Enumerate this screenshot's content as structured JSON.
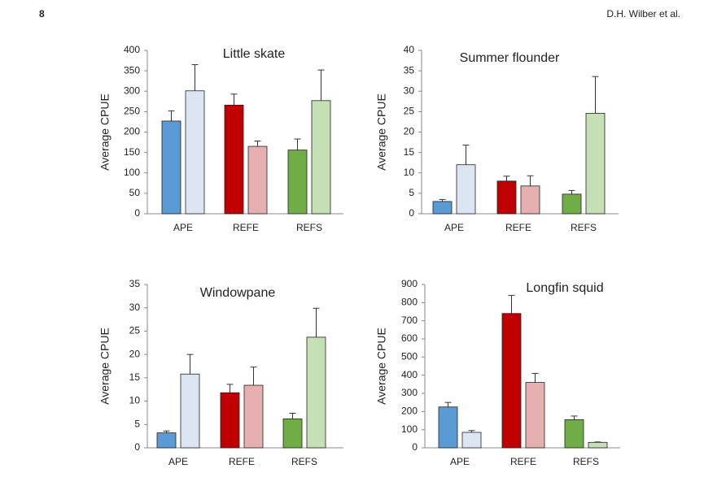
{
  "header": {
    "page": "8",
    "author": "D.H. Wilber et al."
  },
  "chart_data": [
    {
      "type": "bar",
      "title": "Little skate",
      "y_label": "Average CPUE",
      "categories": [
        "APE",
        "REFE",
        "REFS"
      ],
      "ylim": [
        0,
        400
      ],
      "yticks": [
        0,
        50,
        100,
        150,
        200,
        250,
        300,
        350,
        400
      ],
      "series": [
        {
          "colors": [
            "#5b9bd5",
            "#c00000",
            "#70ad47"
          ],
          "values": [
            227,
            266,
            156
          ],
          "errors": [
            25,
            27,
            27
          ]
        },
        {
          "colors": [
            "#dce6f2",
            "#e6b0b0",
            "#c5e0b4"
          ],
          "values": [
            301,
            165,
            277
          ],
          "errors": [
            64,
            13,
            75
          ]
        }
      ]
    },
    {
      "type": "bar",
      "title": "Summer flounder",
      "y_label": "Average CPUE",
      "categories": [
        "APE",
        "REFE",
        "REFS"
      ],
      "ylim": [
        0,
        40
      ],
      "yticks": [
        0,
        5,
        10,
        15,
        20,
        25,
        30,
        35,
        40
      ],
      "series": [
        {
          "colors": [
            "#5b9bd5",
            "#c00000",
            "#70ad47"
          ],
          "values": [
            3,
            8,
            4.8
          ],
          "errors": [
            0.5,
            1.2,
            0.9
          ]
        },
        {
          "colors": [
            "#dce6f2",
            "#e6b0b0",
            "#c5e0b4"
          ],
          "values": [
            12,
            6.8,
            24.6
          ],
          "errors": [
            4.8,
            2.5,
            9
          ]
        }
      ]
    },
    {
      "type": "bar",
      "title": "Windowpane",
      "y_label": "Average CPUE",
      "categories": [
        "APE",
        "REFE",
        "REFS"
      ],
      "ylim": [
        0,
        35
      ],
      "yticks": [
        0,
        5,
        10,
        15,
        20,
        25,
        30,
        35
      ],
      "series": [
        {
          "colors": [
            "#5b9bd5",
            "#c00000",
            "#70ad47"
          ],
          "values": [
            3.2,
            11.8,
            6.2
          ],
          "errors": [
            0.4,
            1.8,
            1.2
          ]
        },
        {
          "colors": [
            "#dce6f2",
            "#e6b0b0",
            "#c5e0b4"
          ],
          "values": [
            15.8,
            13.4,
            23.7
          ],
          "errors": [
            4.2,
            3.9,
            6.2
          ]
        }
      ]
    },
    {
      "type": "bar",
      "title": "Longfin squid",
      "y_label": "Average CPUE",
      "categories": [
        "APE",
        "REFE",
        "REFS"
      ],
      "ylim": [
        0,
        900
      ],
      "yticks": [
        0,
        100,
        200,
        300,
        400,
        500,
        600,
        700,
        800,
        900
      ],
      "series": [
        {
          "colors": [
            "#5b9bd5",
            "#c00000",
            "#70ad47"
          ],
          "values": [
            225,
            740,
            155
          ],
          "errors": [
            25,
            100,
            20
          ]
        },
        {
          "colors": [
            "#dce6f2",
            "#e6b0b0",
            "#c5e0b4"
          ],
          "values": [
            85,
            360,
            30
          ],
          "errors": [
            10,
            50,
            2
          ]
        }
      ]
    }
  ]
}
